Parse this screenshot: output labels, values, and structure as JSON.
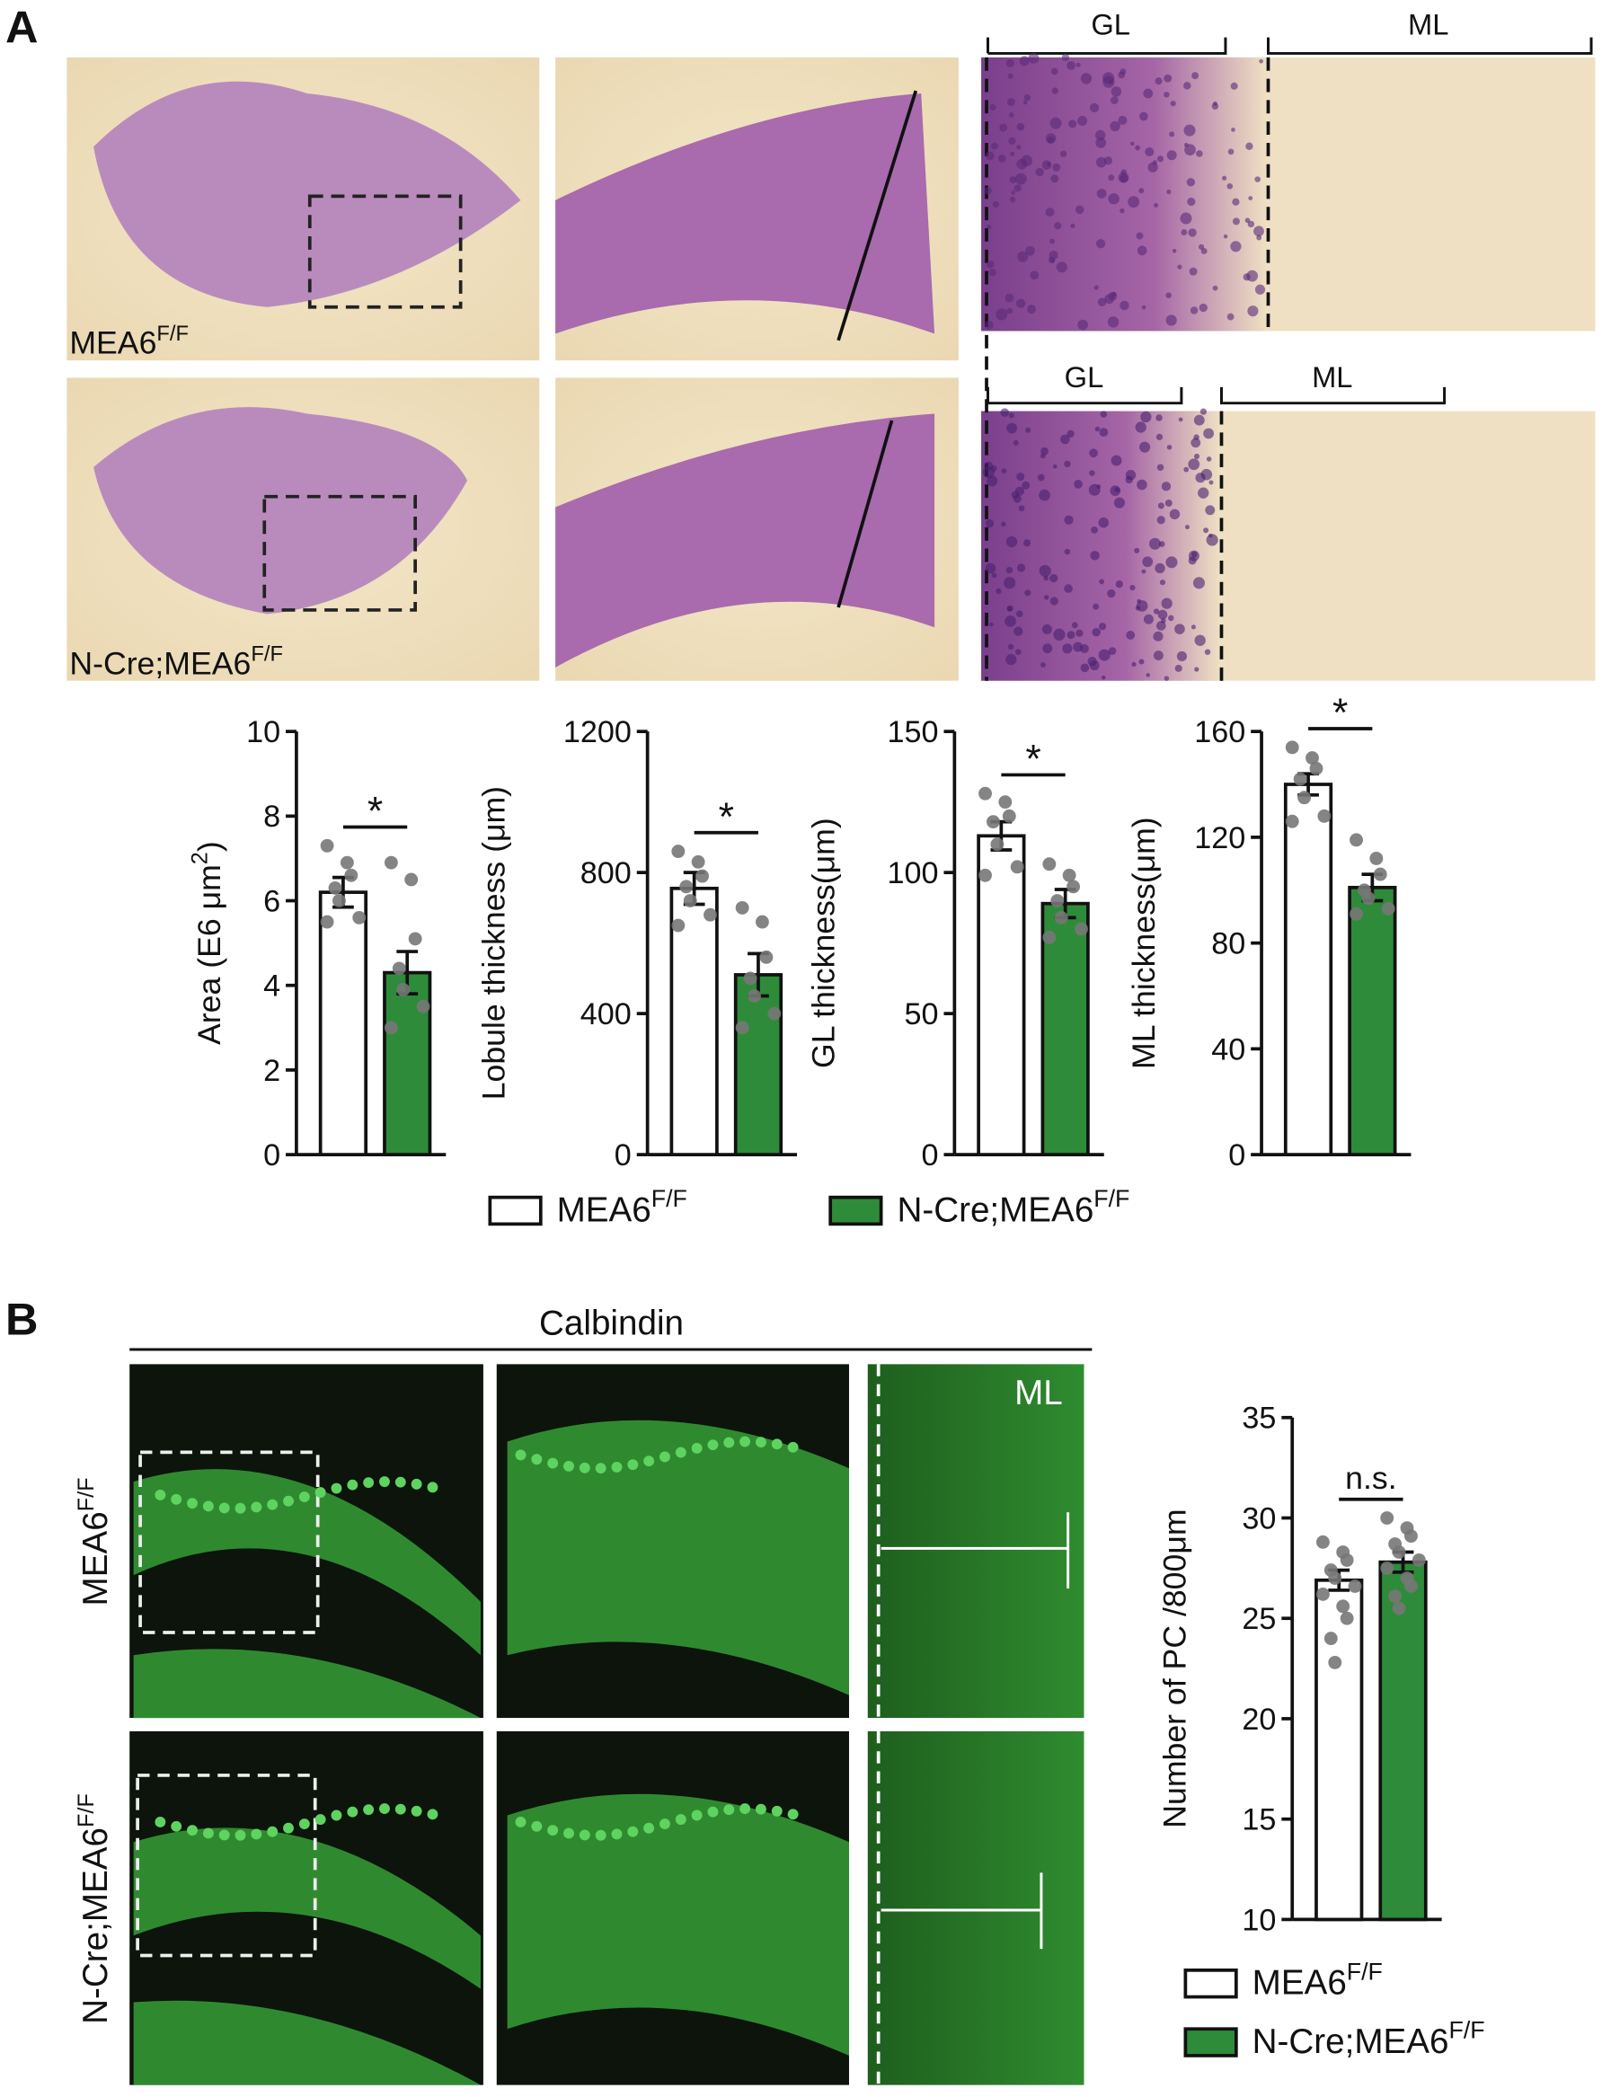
{
  "panels": {
    "a_label": "A",
    "b_label": "B",
    "a_row1": {
      "text": "MEA6",
      "sup": "F/F"
    },
    "a_row2": {
      "text": "N-Cre;MEA6",
      "sup": "F/F"
    },
    "gl_top": "GL",
    "ml_top": "ML",
    "gl_bottom": "GL",
    "ml_bottom": "ML",
    "calbindin": "Calbindin",
    "b_row1": {
      "text": "MEA6",
      "sup": "F/F"
    },
    "b_row2": {
      "text": "N-Cre;MEA6",
      "sup": "F/F"
    },
    "b_ml": "ML"
  },
  "chart_data": [
    {
      "type": "bar",
      "ylabel": "Area (E6  μm",
      "ylabel_sup": "2",
      "ylabel_end": ")",
      "ylim": [
        0,
        10
      ],
      "yticks": [
        0,
        2,
        4,
        6,
        8,
        10
      ],
      "annotation": "*",
      "series": [
        {
          "name": "MEA6",
          "name_sup": "F/F",
          "color": "#ffffff",
          "values": [
            6.2
          ],
          "errors": [
            0.35
          ],
          "points": [
            7.3,
            6.9,
            6.6,
            6.3,
            6.0,
            5.6,
            5.5
          ]
        },
        {
          "name": "N-Cre;MEA6",
          "name_sup": "F/F",
          "color": "#2e8b3a",
          "values": [
            4.3
          ],
          "errors": [
            0.5
          ],
          "points": [
            6.9,
            6.5,
            5.1,
            4.4,
            3.9,
            3.5,
            3.0
          ]
        }
      ]
    },
    {
      "type": "bar",
      "ylabel": "Lobule thickness (μm)",
      "ylim": [
        0,
        1200
      ],
      "yticks": [
        0,
        400,
        800,
        1200
      ],
      "annotation": "*",
      "series": [
        {
          "color": "#ffffff",
          "values": [
            755
          ],
          "errors": [
            45
          ],
          "points": [
            860,
            830,
            790,
            760,
            720,
            680,
            650
          ]
        },
        {
          "color": "#2e8b3a",
          "values": [
            510
          ],
          "errors": [
            60
          ],
          "points": [
            700,
            660,
            560,
            500,
            450,
            400,
            360
          ]
        }
      ]
    },
    {
      "type": "bar",
      "ylabel": "GL thickness(μm)",
      "ylim": [
        0,
        150
      ],
      "yticks": [
        0,
        50,
        100,
        150
      ],
      "annotation": "*",
      "series": [
        {
          "color": "#ffffff",
          "values": [
            113
          ],
          "errors": [
            5
          ],
          "points": [
            128,
            125,
            120,
            118,
            110,
            102,
            99
          ]
        },
        {
          "color": "#2e8b3a",
          "values": [
            89
          ],
          "errors": [
            5
          ],
          "points": [
            103,
            99,
            95,
            90,
            84,
            80,
            77
          ]
        }
      ]
    },
    {
      "type": "bar",
      "ylabel": "ML thickness(μm)",
      "ylim": [
        0,
        160
      ],
      "yticks": [
        0,
        40,
        80,
        120,
        160
      ],
      "annotation": "*",
      "series": [
        {
          "color": "#ffffff",
          "values": [
            140
          ],
          "errors": [
            4
          ],
          "points": [
            154,
            150,
            146,
            142,
            135,
            128,
            126
          ]
        },
        {
          "color": "#2e8b3a",
          "values": [
            101
          ],
          "errors": [
            5
          ],
          "points": [
            119,
            112,
            106,
            100,
            97,
            93,
            91
          ]
        }
      ]
    },
    {
      "type": "bar",
      "ylabel": "Number of PC /800μm",
      "ylim": [
        10,
        35
      ],
      "yticks": [
        10,
        15,
        20,
        25,
        30,
        35
      ],
      "annotation": "n.s.",
      "series": [
        {
          "name": "MEA6",
          "name_sup": "F/F",
          "color": "#ffffff",
          "values": [
            26.9
          ],
          "errors": [
            0.5
          ],
          "points": [
            28.8,
            28.3,
            27.9,
            27.4,
            27.0,
            26.6,
            26.2,
            25.6,
            25.0,
            24.0,
            22.8
          ]
        },
        {
          "name": "N-Cre;MEA6",
          "name_sup": "F/F",
          "color": "#2e8b3a",
          "values": [
            27.8
          ],
          "errors": [
            0.5
          ],
          "points": [
            30.0,
            29.5,
            29.1,
            28.7,
            28.3,
            27.9,
            27.5,
            27.0,
            26.6,
            26.1,
            25.5
          ]
        }
      ]
    }
  ]
}
